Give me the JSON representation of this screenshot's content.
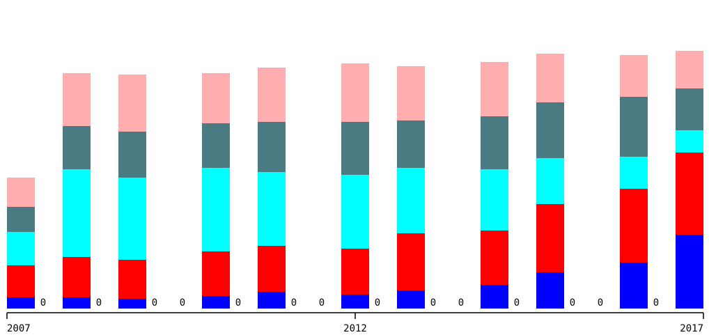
{
  "chart_data": {
    "type": "stacked_bar",
    "x": [
      2007.2,
      2008.0,
      2008.8,
      2010.0,
      2010.8,
      2012.0,
      2012.8,
      2014.0,
      2014.8,
      2016.0,
      2016.8
    ],
    "series": [
      {
        "color": "#0000ff",
        "values": [
          16,
          16,
          14,
          18,
          24,
          20,
          26,
          34,
          52,
          66,
          106
        ]
      },
      {
        "color": "#ff0000",
        "values": [
          46,
          58,
          56,
          64,
          66,
          66,
          82,
          78,
          98,
          106,
          118
        ]
      },
      {
        "color": "#00ffff",
        "values": [
          48,
          126,
          118,
          120,
          106,
          106,
          94,
          88,
          66,
          46,
          32
        ]
      },
      {
        "color": "#4b7b82",
        "values": [
          36,
          62,
          66,
          64,
          72,
          76,
          68,
          76,
          80,
          86,
          60
        ]
      },
      {
        "color": "#ffaeb0",
        "values": [
          42,
          76,
          82,
          72,
          78,
          84,
          78,
          78,
          70,
          60,
          54
        ]
      }
    ],
    "zero_labels": {
      "x": [
        2007.5,
        2008.3,
        2009.1,
        2009.5,
        2010.3,
        2011.1,
        2011.5,
        2012.3,
        2013.1,
        2013.5,
        2014.3,
        2015.1,
        2015.5,
        2016.3
      ],
      "values": [
        0,
        0,
        0,
        0,
        0,
        0,
        0,
        0,
        0,
        0,
        0,
        0,
        0,
        0
      ]
    },
    "xlim": [
      2007,
      2017
    ],
    "xticks": [
      2007,
      2012,
      2017
    ],
    "ylim": [
      0,
      400
    ]
  }
}
